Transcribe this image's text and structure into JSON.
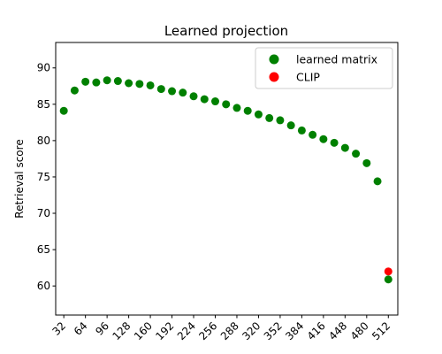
{
  "chart_data": {
    "type": "scatter",
    "title": "Learned projection",
    "xlabel": "",
    "ylabel": "Retrieval score",
    "xlim": [
      20,
      526
    ],
    "ylim": [
      56,
      93.5
    ],
    "x_ticks": [
      32,
      64,
      96,
      128,
      160,
      192,
      224,
      256,
      288,
      320,
      352,
      384,
      416,
      448,
      480,
      512
    ],
    "y_ticks": [
      60,
      65,
      70,
      75,
      80,
      85,
      90
    ],
    "grid": false,
    "legend": "top-right",
    "series": [
      {
        "name": "learned matrix",
        "color": "#008000",
        "x": [
          32,
          48,
          64,
          80,
          96,
          112,
          128,
          144,
          160,
          176,
          192,
          208,
          224,
          240,
          256,
          272,
          288,
          304,
          320,
          336,
          352,
          368,
          384,
          400,
          416,
          432,
          448,
          464,
          480,
          496,
          512
        ],
        "y": [
          84.1,
          86.9,
          88.1,
          88.0,
          88.3,
          88.2,
          87.9,
          87.8,
          87.6,
          87.1,
          86.8,
          86.6,
          86.1,
          85.7,
          85.4,
          85.0,
          84.5,
          84.1,
          83.6,
          83.1,
          82.8,
          82.1,
          81.4,
          80.8,
          80.2,
          79.7,
          79.0,
          78.2,
          76.9,
          74.4,
          60.9
        ]
      },
      {
        "name": "CLIP",
        "color": "#ff0000",
        "x": [
          512
        ],
        "y": [
          62.0
        ]
      }
    ]
  }
}
